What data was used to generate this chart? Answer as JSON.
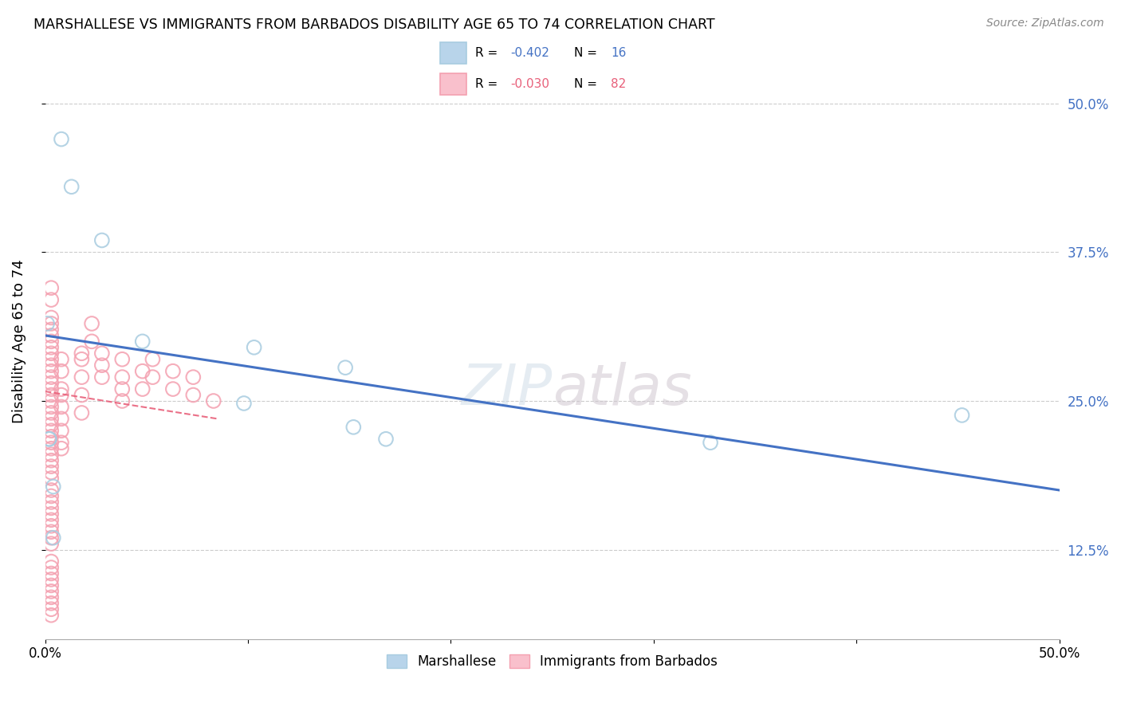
{
  "title": "MARSHALLESE VS IMMIGRANTS FROM BARBADOS DISABILITY AGE 65 TO 74 CORRELATION CHART",
  "source": "Source: ZipAtlas.com",
  "ylabel": "Disability Age 65 to 74",
  "right_yticks": [
    "50.0%",
    "37.5%",
    "25.0%",
    "12.5%"
  ],
  "right_ytick_vals": [
    0.5,
    0.375,
    0.25,
    0.125
  ],
  "xlim": [
    0.0,
    0.5
  ],
  "ylim": [
    0.05,
    0.55
  ],
  "xticks": [
    0.0,
    0.1,
    0.2,
    0.3,
    0.4,
    0.5
  ],
  "xticklabels": [
    "0.0%",
    "",
    "",
    "",
    "",
    "50.0%"
  ],
  "legend_label_blue": "Marshallese",
  "legend_label_pink": "Immigrants from Barbados",
  "blue_scatter_color": "#a8cce0",
  "pink_scatter_color": "#f4a0b0",
  "blue_line_color": "#4472c4",
  "pink_line_color": "#e8607a",
  "blue_legend_face": "#b8d4ea",
  "pink_legend_face": "#f9c0cc",
  "background_color": "#ffffff",
  "grid_color": "#cccccc",
  "marshallese_x": [
    0.008,
    0.013,
    0.028,
    0.001,
    0.048,
    0.103,
    0.098,
    0.148,
    0.152,
    0.168,
    0.452,
    0.328,
    0.002,
    0.002,
    0.004,
    0.004
  ],
  "marshallese_y": [
    0.47,
    0.43,
    0.385,
    0.315,
    0.3,
    0.295,
    0.248,
    0.278,
    0.228,
    0.218,
    0.238,
    0.215,
    0.218,
    0.218,
    0.178,
    0.135
  ],
  "barbados_x": [
    0.003,
    0.003,
    0.003,
    0.003,
    0.003,
    0.003,
    0.003,
    0.003,
    0.003,
    0.003,
    0.003,
    0.003,
    0.003,
    0.003,
    0.003,
    0.003,
    0.003,
    0.003,
    0.003,
    0.003,
    0.003,
    0.003,
    0.003,
    0.003,
    0.003,
    0.003,
    0.003,
    0.003,
    0.003,
    0.003,
    0.003,
    0.003,
    0.003,
    0.003,
    0.003,
    0.003,
    0.003,
    0.003,
    0.003,
    0.003,
    0.003,
    0.003,
    0.003,
    0.003,
    0.003,
    0.003,
    0.003,
    0.003,
    0.003,
    0.003,
    0.008,
    0.008,
    0.008,
    0.008,
    0.008,
    0.008,
    0.008,
    0.008,
    0.008,
    0.018,
    0.018,
    0.018,
    0.018,
    0.018,
    0.023,
    0.023,
    0.028,
    0.028,
    0.028,
    0.038,
    0.038,
    0.038,
    0.038,
    0.048,
    0.048,
    0.053,
    0.053,
    0.063,
    0.063,
    0.073,
    0.073,
    0.083
  ],
  "barbados_y": [
    0.345,
    0.335,
    0.32,
    0.315,
    0.31,
    0.305,
    0.3,
    0.295,
    0.29,
    0.285,
    0.28,
    0.275,
    0.27,
    0.265,
    0.26,
    0.255,
    0.25,
    0.245,
    0.24,
    0.235,
    0.23,
    0.225,
    0.22,
    0.215,
    0.21,
    0.205,
    0.2,
    0.195,
    0.19,
    0.185,
    0.175,
    0.17,
    0.165,
    0.16,
    0.155,
    0.15,
    0.145,
    0.14,
    0.135,
    0.13,
    0.115,
    0.11,
    0.105,
    0.1,
    0.095,
    0.09,
    0.085,
    0.08,
    0.075,
    0.07,
    0.285,
    0.275,
    0.26,
    0.255,
    0.245,
    0.235,
    0.225,
    0.215,
    0.21,
    0.29,
    0.285,
    0.27,
    0.255,
    0.24,
    0.315,
    0.3,
    0.29,
    0.28,
    0.27,
    0.285,
    0.27,
    0.26,
    0.25,
    0.275,
    0.26,
    0.285,
    0.27,
    0.275,
    0.26,
    0.27,
    0.255,
    0.25
  ],
  "blue_trendline_x": [
    0.0,
    0.5
  ],
  "blue_trendline_y": [
    0.305,
    0.175
  ],
  "pink_trendline_x": [
    0.0,
    0.085
  ],
  "pink_trendline_y": [
    0.258,
    0.235
  ]
}
